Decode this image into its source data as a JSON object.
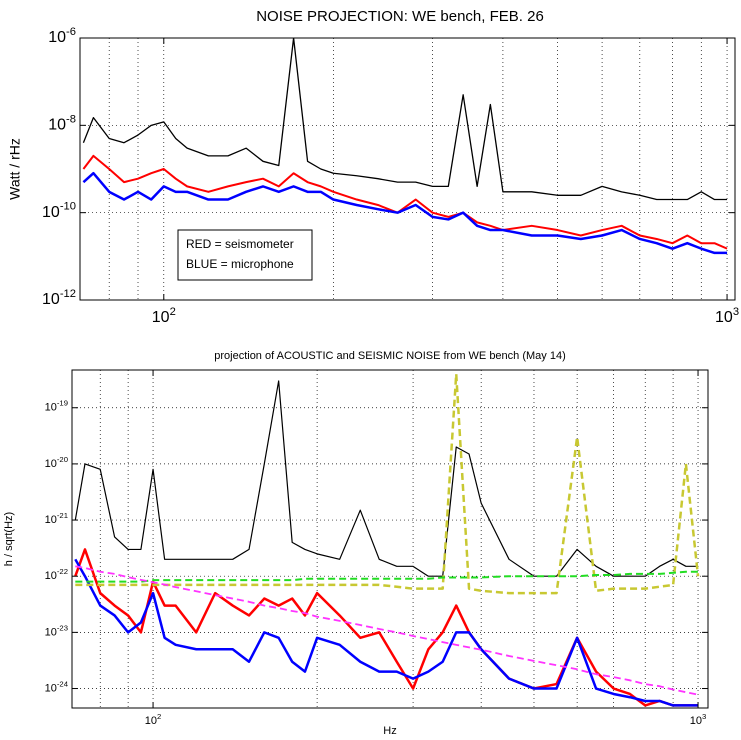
{
  "chart_data": [
    {
      "type": "line",
      "title": "NOISE PROJECTION: WE bench, FEB. 26",
      "ylabel": "Watt / rHz",
      "log_x": true,
      "log_y": true,
      "grid": true,
      "xlim": [
        71,
        1033
      ],
      "ylim": [
        1e-12,
        1e-06
      ],
      "xticks": [
        {
          "value": 100,
          "label": "10^2"
        },
        {
          "value": 1000,
          "label": "10^3"
        }
      ],
      "xminor": [
        80,
        90,
        200,
        300,
        400,
        500,
        600,
        700,
        800,
        900
      ],
      "yticks": [
        {
          "value": 1e-12,
          "label": "10^-12"
        },
        {
          "value": 1e-10,
          "label": "10^-10"
        },
        {
          "value": 1e-08,
          "label": "10^-8"
        },
        {
          "value": 1e-06,
          "label": "10^-6"
        }
      ],
      "annotations": [
        "RED = seismometer",
        "BLUE = microphone"
      ],
      "x": [
        72,
        75,
        80,
        85,
        90,
        95,
        100,
        105,
        110,
        120,
        130,
        140,
        150,
        160,
        170,
        180,
        190,
        200,
        220,
        240,
        260,
        280,
        300,
        320,
        340,
        360,
        380,
        400,
        450,
        500,
        550,
        600,
        650,
        700,
        750,
        800,
        850,
        900,
        950,
        1000
      ],
      "series": [
        {
          "color": "#ff0000",
          "width": 2,
          "values": [
            1e-09,
            2e-09,
            1e-09,
            5e-10,
            6e-10,
            8e-10,
            1e-09,
            6e-10,
            4e-10,
            3e-10,
            4e-10,
            5e-10,
            6e-10,
            4e-10,
            8e-10,
            5e-10,
            4e-10,
            3e-10,
            2e-10,
            1.5e-10,
            1e-10,
            2e-10,
            1e-10,
            8e-11,
            1e-10,
            6e-11,
            5e-11,
            4e-11,
            5e-11,
            4e-11,
            3e-11,
            4e-11,
            5e-11,
            3e-11,
            2.5e-11,
            2e-11,
            3e-11,
            2e-11,
            2e-11,
            1.5e-11
          ]
        },
        {
          "color": "#0000ff",
          "width": 2.5,
          "values": [
            5e-10,
            8e-10,
            3e-10,
            2e-10,
            3e-10,
            2e-10,
            4e-10,
            3e-10,
            3e-10,
            2e-10,
            2e-10,
            3e-10,
            4e-10,
            3e-10,
            4e-10,
            3e-10,
            3e-10,
            2e-10,
            1.5e-10,
            1.2e-10,
            1e-10,
            1.5e-10,
            8e-11,
            7e-11,
            1e-10,
            5e-11,
            4e-11,
            4e-11,
            3e-11,
            3e-11,
            2.5e-11,
            3e-11,
            4e-11,
            2.5e-11,
            2e-11,
            1.5e-11,
            2e-11,
            1.5e-11,
            1.2e-11,
            1.2e-11
          ]
        },
        {
          "color": "#000000",
          "width": 1.3,
          "values": [
            4e-09,
            1.5e-08,
            5e-09,
            4e-09,
            6e-09,
            1e-08,
            1.2e-08,
            5e-09,
            3e-09,
            2e-09,
            2e-09,
            3e-09,
            1.5e-09,
            1.2e-09,
            1e-06,
            1.5e-09,
            1e-09,
            8e-10,
            7e-10,
            6e-10,
            5e-10,
            5e-10,
            4e-10,
            4e-10,
            5e-08,
            4e-10,
            3e-08,
            3e-10,
            3e-10,
            2.5e-10,
            2.5e-10,
            4e-10,
            3e-10,
            2.5e-10,
            2e-10,
            2e-10,
            2e-10,
            3e-10,
            2e-10,
            2e-10
          ]
        }
      ]
    },
    {
      "type": "line",
      "title": "projection of ACOUSTIC and SEISMIC NOISE from WE bench (May 14)",
      "xlabel": "Hz",
      "ylabel": "h / sqrt(Hz)",
      "log_x": true,
      "log_y": true,
      "grid": true,
      "xlim": [
        71,
        1043
      ],
      "ylim": [
        4.5e-25,
        4.7e-19
      ],
      "xticks": [
        {
          "value": 100,
          "label": "10^2"
        },
        {
          "value": 1000,
          "label": "10^3"
        }
      ],
      "xminor": [
        80,
        90,
        200,
        300,
        400,
        500,
        600,
        700,
        800,
        900
      ],
      "yticks": [
        {
          "value": 1e-24,
          "label": "10^-24"
        },
        {
          "value": 1e-23,
          "label": "10^-23"
        },
        {
          "value": 1e-22,
          "label": "10^-22"
        },
        {
          "value": 1e-21,
          "label": "10^-21"
        },
        {
          "value": 1e-20,
          "label": "10^-20"
        },
        {
          "value": 1e-19,
          "label": "10^-19"
        }
      ],
      "x": [
        72,
        75,
        80,
        85,
        90,
        95,
        100,
        105,
        110,
        120,
        130,
        140,
        150,
        160,
        170,
        180,
        190,
        200,
        220,
        240,
        260,
        280,
        300,
        320,
        340,
        360,
        380,
        400,
        450,
        500,
        550,
        600,
        650,
        700,
        750,
        800,
        850,
        900,
        950,
        1000
      ],
      "series": [
        {
          "color": "#000000",
          "width": 1.2,
          "values": [
            1e-21,
            1e-20,
            8e-21,
            5e-22,
            3e-22,
            3e-22,
            8e-21,
            2e-22,
            2e-22,
            2e-22,
            2e-22,
            2e-22,
            3e-22,
            1e-20,
            3e-19,
            4e-22,
            3e-22,
            2.5e-22,
            2e-22,
            1.5e-21,
            2e-22,
            1.5e-22,
            1.5e-22,
            1e-22,
            1e-22,
            2e-20,
            1.5e-20,
            2e-21,
            2e-22,
            1e-22,
            1e-22,
            3e-22,
            1.5e-22,
            1e-22,
            1e-22,
            1e-22,
            1.5e-22,
            2e-22,
            1.5e-22,
            1.5e-22
          ]
        },
        {
          "color": "#ff0000",
          "width": 2.5,
          "values": [
            1e-22,
            3e-22,
            5e-23,
            3e-23,
            2e-23,
            1e-23,
            8e-23,
            3e-23,
            3e-23,
            1e-23,
            5e-23,
            3e-23,
            2e-23,
            4e-23,
            3e-23,
            4e-23,
            2e-23,
            5e-23,
            2e-23,
            8e-24,
            1e-23,
            3e-24,
            1e-24,
            5e-24,
            1e-23,
            3e-23,
            1e-23,
            5e-24,
            1.5e-24,
            1e-24,
            1.2e-24,
            8e-24,
            2e-24,
            1e-24,
            8e-25,
            5e-25,
            6e-25,
            5e-25,
            5e-25,
            5e-25
          ]
        },
        {
          "color": "#0000ff",
          "width": 2.5,
          "values": [
            2e-22,
            1e-22,
            3e-23,
            2e-23,
            1e-23,
            1.5e-23,
            5e-23,
            8e-24,
            6e-24,
            5e-24,
            5e-24,
            5e-24,
            3e-24,
            1e-23,
            8e-24,
            3e-24,
            2e-24,
            8e-24,
            6e-24,
            3e-24,
            2e-24,
            2e-24,
            1.5e-24,
            2e-24,
            3e-24,
            1e-23,
            1e-23,
            5e-24,
            1.5e-24,
            1e-24,
            1e-24,
            8e-24,
            1e-24,
            8e-25,
            7e-25,
            6e-25,
            6e-25,
            5e-25,
            5e-25,
            5e-25
          ]
        },
        {
          "color": "#c8c832",
          "width": 2.5,
          "dash": true,
          "values": [
            7e-23,
            7e-23,
            7e-23,
            7e-23,
            7e-23,
            7e-23,
            7e-23,
            7e-23,
            7e-23,
            7e-23,
            7e-23,
            7e-23,
            7e-23,
            7e-23,
            7e-23,
            7e-23,
            7e-23,
            7e-23,
            7e-23,
            7e-23,
            7e-23,
            6.5e-23,
            6e-23,
            6e-23,
            6e-23,
            4e-19,
            6e-23,
            5.5e-23,
            5e-23,
            5e-23,
            5e-23,
            3e-20,
            5.5e-23,
            6e-23,
            6e-23,
            6e-23,
            6.5e-23,
            7e-23,
            1e-20,
            1e-22
          ]
        },
        {
          "color": "#22dd22",
          "width": 2,
          "dash": true,
          "values": [
            8e-23,
            8e-23,
            8e-23,
            8e-23,
            8e-23,
            8e-23,
            8.5e-23,
            8.5e-23,
            8.5e-23,
            8.5e-23,
            8.5e-23,
            8.5e-23,
            8.5e-23,
            8.5e-23,
            8.5e-23,
            8.5e-23,
            9e-23,
            9e-23,
            9e-23,
            9e-23,
            9e-23,
            9e-23,
            9e-23,
            9e-23,
            9.5e-23,
            9.5e-23,
            9.5e-23,
            9.5e-23,
            1e-22,
            1e-22,
            1e-22,
            1e-22,
            1.05e-22,
            1.05e-22,
            1.1e-22,
            1.1e-22,
            1.1e-22,
            1.15e-22,
            1.2e-22,
            1.2e-22
          ]
        },
        {
          "color": "#ff33ff",
          "width": 1.8,
          "dash": true,
          "values": [
            1.5e-22,
            1.4e-22,
            1.2e-22,
            1.1e-22,
            9.6e-23,
            8.6e-23,
            7.8e-23,
            7.1e-23,
            6.4e-23,
            5.4e-23,
            4.6e-23,
            4e-23,
            3.5e-23,
            3e-23,
            2.7e-23,
            2.4e-23,
            2.2e-23,
            1.9e-23,
            1.6e-23,
            1.35e-23,
            1.15e-23,
            1e-23,
            8.6e-24,
            7.6e-24,
            6.7e-24,
            6e-24,
            5.4e-24,
            4.9e-24,
            3.8e-24,
            3.1e-24,
            2.6e-24,
            2.2e-24,
            1.8e-24,
            1.6e-24,
            1.4e-24,
            1.2e-24,
            1.1e-24,
            9.6e-25,
            8.6e-25,
            7.8e-25
          ]
        }
      ]
    }
  ]
}
